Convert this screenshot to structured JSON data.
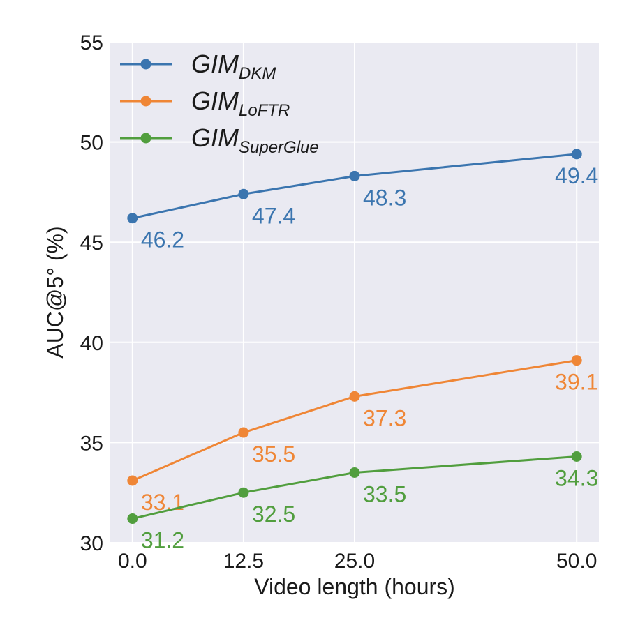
{
  "chart_data": {
    "type": "line",
    "xlabel": "Video length (hours)",
    "ylabel": "AUC@5° (%)",
    "x": [
      0.0,
      12.5,
      25.0,
      50.0
    ],
    "x_tick_labels": [
      "0.0",
      "12.5",
      "25.0",
      "50.0"
    ],
    "xlim": [
      -2.5,
      52.5
    ],
    "ylim": [
      30,
      55
    ],
    "y_ticks": [
      30,
      35,
      40,
      45,
      50,
      55
    ],
    "grid": true,
    "legend_position": "top-left",
    "series": [
      {
        "name": "GIM_DKM",
        "legend_main": "GIM",
        "legend_sub": "DKM",
        "color": "#3b75af",
        "values": [
          46.2,
          47.4,
          48.3,
          49.4
        ],
        "labels": [
          "46.2",
          "47.4",
          "48.3",
          "49.4"
        ]
      },
      {
        "name": "GIM_LoFTR",
        "legend_main": "GIM",
        "legend_sub": "LoFTR",
        "color": "#ef8636",
        "values": [
          33.1,
          35.5,
          37.3,
          39.1
        ],
        "labels": [
          "33.1",
          "35.5",
          "37.3",
          "39.1"
        ]
      },
      {
        "name": "GIM_SuperGlue",
        "legend_main": "GIM",
        "legend_sub": "SuperGlue",
        "color": "#519e3e",
        "values": [
          31.2,
          32.5,
          33.5,
          34.3
        ],
        "labels": [
          "31.2",
          "32.5",
          "33.5",
          "34.3"
        ]
      }
    ]
  }
}
